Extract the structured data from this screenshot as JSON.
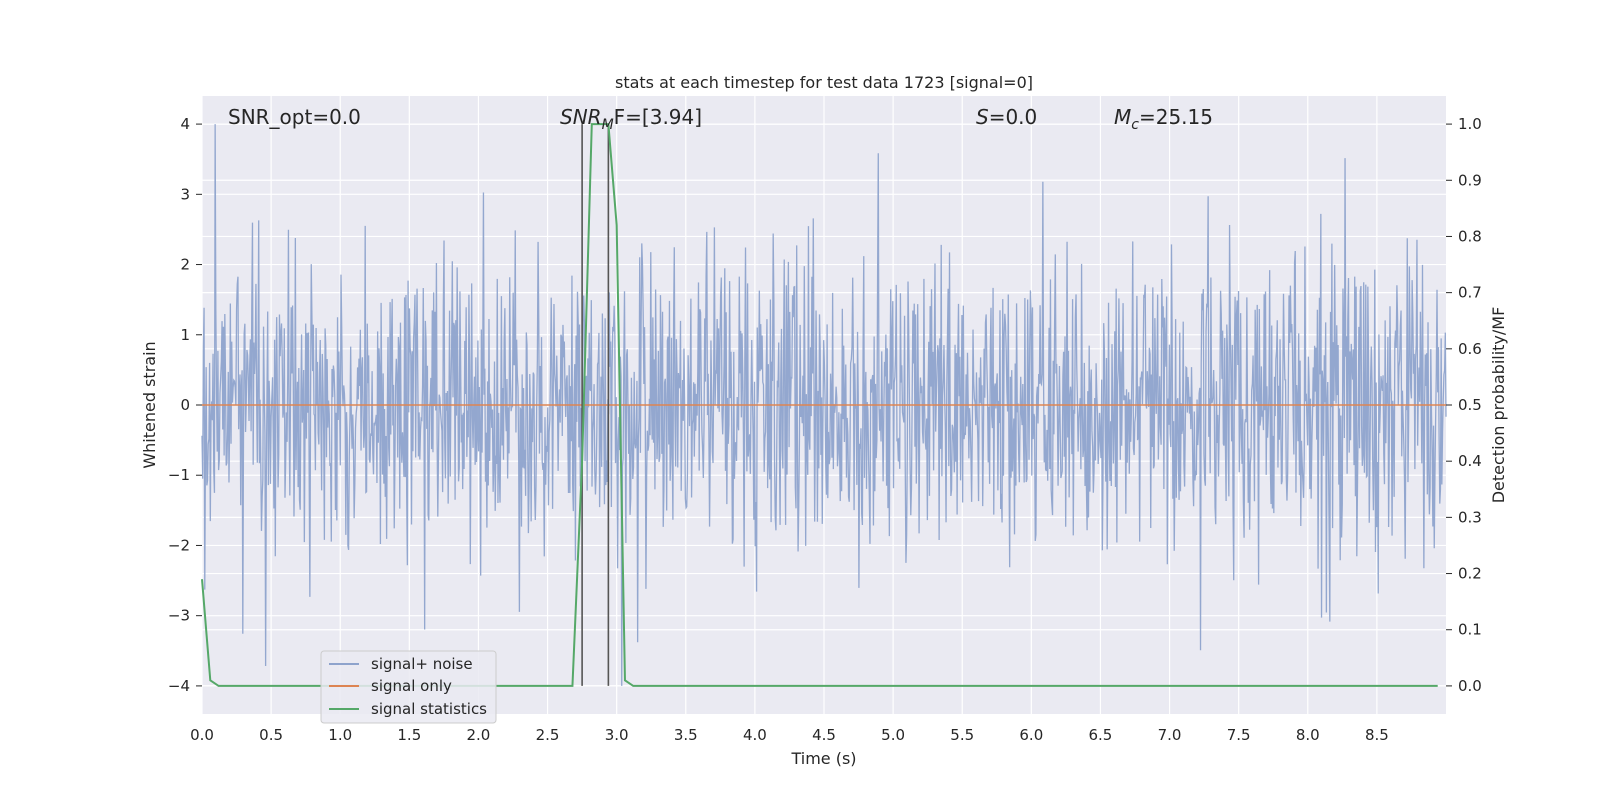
{
  "chart_data": {
    "type": "line",
    "title": "stats at each timestep for test data 1723 [signal=0]",
    "xlabel": "Time (s)",
    "ylabel_left": "Whitened strain",
    "ylabel_right": "Detection probability/MF",
    "xlim": [
      0.0,
      9.0
    ],
    "ylim_left": [
      -4.4,
      4.4
    ],
    "ylim_right": [
      -0.05,
      1.05
    ],
    "xticks": [
      "0.0",
      "0.5",
      "1.0",
      "1.5",
      "2.0",
      "2.5",
      "3.0",
      "3.5",
      "4.0",
      "4.5",
      "5.0",
      "5.5",
      "6.0",
      "6.5",
      "7.0",
      "7.5",
      "8.0",
      "8.5"
    ],
    "yticks_left": [
      "4",
      "3",
      "2",
      "1",
      "0",
      "−1",
      "−2",
      "−3",
      "−4"
    ],
    "yticks_right": [
      "1.0",
      "0.9",
      "0.8",
      "0.7",
      "0.6",
      "0.5",
      "0.4",
      "0.3",
      "0.2",
      "0.1",
      "0.0"
    ],
    "grid": true,
    "legend_position": "lower-left",
    "annotations": {
      "snr_opt": "SNR_opt=0.0",
      "snr_mf_main": "SNR",
      "snr_mf_sub": "M",
      "snr_mf_rest": "F=[3.94]",
      "s_main": "S",
      "s_rest": "=0.0",
      "mc_main": "M",
      "mc_sub": "c",
      "mc_rest": "=25.15"
    },
    "vertical_lines_x": [
      2.75,
      2.94
    ],
    "series": [
      {
        "name": "signal+ noise",
        "axis": "left",
        "color": "#8ea3cc",
        "description_values": "whitened noise, approx N(0,1), peak about 4.0, trough about -4.0",
        "num_samples": 1800,
        "seed": 1723
      },
      {
        "name": "signal only",
        "axis": "left",
        "color": "#dd8452",
        "x": [
          0.0,
          9.0
        ],
        "y": [
          0.0,
          0.0
        ]
      },
      {
        "name": "signal statistics",
        "axis": "right",
        "color": "#55a868",
        "x": [
          0.0,
          0.06,
          0.12,
          0.5,
          1.0,
          1.5,
          2.0,
          2.5,
          2.68,
          2.75,
          2.82,
          2.88,
          2.94,
          3.0,
          3.06,
          3.12,
          3.5,
          4.0,
          5.0,
          6.0,
          7.0,
          8.0,
          8.94
        ],
        "y": [
          0.19,
          0.01,
          0.0,
          0.0,
          0.0,
          0.0,
          0.0,
          0.0,
          0.0,
          0.4,
          1.0,
          1.0,
          1.0,
          0.82,
          0.01,
          0.0,
          0.0,
          0.0,
          0.0,
          0.0,
          0.0,
          0.0,
          0.0
        ]
      }
    ]
  }
}
